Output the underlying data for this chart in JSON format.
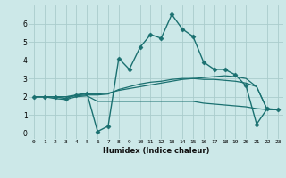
{
  "xlabel": "Humidex (Indice chaleur)",
  "ylabel": "",
  "background_color": "#cce8e8",
  "grid_color": "#aacccc",
  "line_color": "#1a7070",
  "xlim": [
    -0.5,
    23.5
  ],
  "ylim": [
    -0.3,
    7.0
  ],
  "xticks": [
    0,
    1,
    2,
    3,
    4,
    5,
    6,
    7,
    8,
    9,
    10,
    11,
    12,
    13,
    14,
    15,
    16,
    17,
    18,
    19,
    20,
    21,
    22,
    23
  ],
  "yticks": [
    0,
    1,
    2,
    3,
    4,
    5,
    6
  ],
  "series": [
    {
      "x": [
        0,
        1,
        2,
        3,
        4,
        5,
        6,
        7,
        8,
        9,
        10,
        11,
        12,
        13,
        14,
        15,
        16,
        17,
        18,
        19,
        20,
        21,
        22,
        23
      ],
      "y": [
        2.0,
        2.0,
        2.0,
        1.9,
        2.1,
        2.2,
        0.1,
        0.4,
        4.1,
        3.5,
        4.7,
        5.4,
        5.2,
        6.5,
        5.7,
        5.3,
        3.9,
        3.5,
        3.5,
        3.2,
        2.6,
        0.5,
        1.35,
        1.3
      ],
      "marker": "D",
      "markersize": 2.5,
      "linewidth": 1.0
    },
    {
      "x": [
        0,
        1,
        2,
        3,
        4,
        5,
        6,
        7,
        8,
        9,
        10,
        11,
        12,
        13,
        14,
        15,
        16,
        17,
        18,
        19,
        20,
        21,
        22,
        23
      ],
      "y": [
        2.0,
        2.0,
        2.0,
        2.0,
        2.1,
        2.15,
        2.15,
        2.2,
        2.35,
        2.45,
        2.55,
        2.65,
        2.75,
        2.85,
        2.95,
        3.0,
        3.05,
        3.1,
        3.15,
        3.1,
        3.0,
        2.55,
        1.3,
        1.3
      ],
      "marker": null,
      "markersize": 0,
      "linewidth": 0.9
    },
    {
      "x": [
        0,
        1,
        2,
        3,
        4,
        5,
        6,
        7,
        8,
        9,
        10,
        11,
        12,
        13,
        14,
        15,
        16,
        17,
        18,
        19,
        20,
        21,
        22,
        23
      ],
      "y": [
        2.0,
        2.0,
        1.9,
        1.85,
        2.0,
        2.05,
        1.75,
        1.75,
        1.75,
        1.75,
        1.75,
        1.75,
        1.75,
        1.75,
        1.75,
        1.75,
        1.65,
        1.6,
        1.55,
        1.5,
        1.45,
        1.35,
        1.3,
        1.3
      ],
      "marker": null,
      "markersize": 0,
      "linewidth": 0.9
    },
    {
      "x": [
        0,
        1,
        2,
        3,
        4,
        5,
        6,
        7,
        8,
        9,
        10,
        11,
        12,
        13,
        14,
        15,
        16,
        17,
        18,
        19,
        20,
        21,
        22,
        23
      ],
      "y": [
        2.0,
        2.0,
        2.0,
        2.0,
        2.05,
        2.1,
        2.1,
        2.15,
        2.4,
        2.55,
        2.7,
        2.8,
        2.85,
        2.95,
        3.0,
        3.0,
        2.95,
        2.95,
        2.9,
        2.85,
        2.75,
        2.55,
        1.3,
        1.3
      ],
      "marker": null,
      "markersize": 0,
      "linewidth": 0.9
    }
  ]
}
